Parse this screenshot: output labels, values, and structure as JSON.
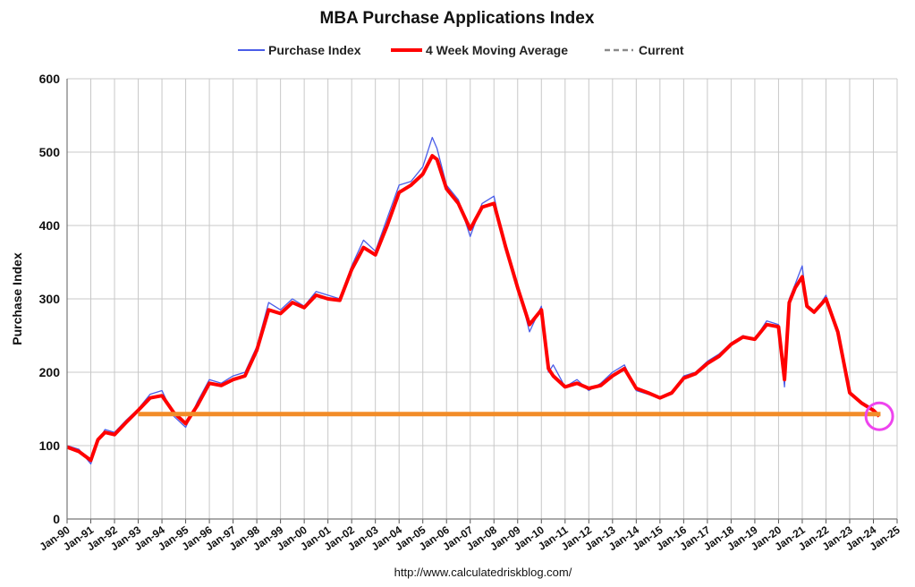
{
  "chart_data": {
    "type": "line",
    "title": "MBA Purchase Applications Index",
    "ylabel": "Purchase Index",
    "xlabel": "",
    "ylim": [
      0,
      600
    ],
    "yticks": [
      0,
      100,
      200,
      300,
      400,
      500,
      600
    ],
    "xlim": [
      1990.0,
      2025.0
    ],
    "x_tick_labels": [
      "Jan-90",
      "Jan-91",
      "Jan-92",
      "Jan-93",
      "Jan-94",
      "Jan-95",
      "Jan-96",
      "Jan-97",
      "Jan-98",
      "Jan-99",
      "Jan-00",
      "Jan-01",
      "Jan-02",
      "Jan-03",
      "Jan-04",
      "Jan-05",
      "Jan-06",
      "Jan-07",
      "Jan-08",
      "Jan-09",
      "Jan-10",
      "Jan-11",
      "Jan-12",
      "Jan-13",
      "Jan-14",
      "Jan-15",
      "Jan-16",
      "Jan-17",
      "Jan-18",
      "Jan-19",
      "Jan-20",
      "Jan-21",
      "Jan-22",
      "Jan-23",
      "Jan-24",
      "Jan-25"
    ],
    "grid": true,
    "legend": "top-center",
    "source": "http://www.calculatedriskblog.com/",
    "series": [
      {
        "name": "Purchase Index",
        "color": "#4a5de8",
        "x": [
          1990.0,
          1990.5,
          1991.0,
          1991.3,
          1991.6,
          1992.0,
          1992.5,
          1993.0,
          1993.5,
          1994.0,
          1994.5,
          1995.0,
          1995.5,
          1996.0,
          1996.5,
          1997.0,
          1997.5,
          1998.0,
          1998.5,
          1999.0,
          1999.5,
          2000.0,
          2000.5,
          2001.0,
          2001.5,
          2002.0,
          2002.5,
          2003.0,
          2003.5,
          2004.0,
          2004.5,
          2005.0,
          2005.4,
          2005.6,
          2006.0,
          2006.5,
          2007.0,
          2007.5,
          2008.0,
          2008.5,
          2009.0,
          2009.5,
          2010.0,
          2010.3,
          2010.5,
          2011.0,
          2011.5,
          2012.0,
          2012.5,
          2013.0,
          2013.5,
          2014.0,
          2014.5,
          2015.0,
          2015.5,
          2016.0,
          2016.5,
          2017.0,
          2017.5,
          2018.0,
          2018.5,
          2019.0,
          2019.5,
          2020.0,
          2020.25,
          2020.45,
          2020.7,
          2021.0,
          2021.2,
          2021.5,
          2022.0,
          2022.5,
          2023.0,
          2023.5,
          2024.0,
          2024.25
        ],
        "y": [
          100,
          95,
          75,
          105,
          122,
          118,
          135,
          150,
          170,
          175,
          140,
          125,
          160,
          190,
          185,
          195,
          200,
          235,
          295,
          285,
          300,
          290,
          310,
          305,
          300,
          345,
          380,
          365,
          410,
          455,
          460,
          480,
          520,
          505,
          455,
          435,
          385,
          430,
          440,
          365,
          320,
          255,
          290,
          200,
          210,
          180,
          190,
          175,
          185,
          200,
          210,
          175,
          170,
          165,
          170,
          195,
          200,
          215,
          225,
          240,
          250,
          245,
          270,
          265,
          180,
          300,
          320,
          345,
          290,
          280,
          305,
          250,
          170,
          160,
          150,
          140
        ]
      },
      {
        "name": "4 Week Moving Average",
        "color": "#ff0000",
        "x": [
          1990.0,
          1990.5,
          1991.0,
          1991.3,
          1991.6,
          1992.0,
          1992.5,
          1993.0,
          1993.5,
          1994.0,
          1994.5,
          1995.0,
          1995.5,
          1996.0,
          1996.5,
          1997.0,
          1997.5,
          1998.0,
          1998.5,
          1999.0,
          1999.5,
          2000.0,
          2000.5,
          2001.0,
          2001.5,
          2002.0,
          2002.5,
          2003.0,
          2003.5,
          2004.0,
          2004.5,
          2005.0,
          2005.4,
          2005.6,
          2006.0,
          2006.5,
          2007.0,
          2007.5,
          2008.0,
          2008.5,
          2009.0,
          2009.5,
          2010.0,
          2010.3,
          2010.5,
          2011.0,
          2011.5,
          2012.0,
          2012.5,
          2013.0,
          2013.5,
          2014.0,
          2014.5,
          2015.0,
          2015.5,
          2016.0,
          2016.5,
          2017.0,
          2017.5,
          2018.0,
          2018.5,
          2019.0,
          2019.5,
          2020.0,
          2020.25,
          2020.45,
          2020.7,
          2021.0,
          2021.2,
          2021.5,
          2022.0,
          2022.5,
          2023.0,
          2023.5,
          2024.0,
          2024.25
        ],
        "y": [
          98,
          92,
          80,
          108,
          118,
          115,
          132,
          148,
          165,
          168,
          145,
          130,
          155,
          185,
          182,
          190,
          195,
          230,
          285,
          280,
          295,
          288,
          305,
          300,
          298,
          340,
          370,
          360,
          400,
          445,
          455,
          470,
          495,
          490,
          450,
          430,
          395,
          425,
          430,
          370,
          315,
          265,
          285,
          205,
          195,
          180,
          185,
          178,
          182,
          195,
          205,
          178,
          172,
          165,
          172,
          192,
          198,
          212,
          222,
          238,
          248,
          245,
          265,
          262,
          190,
          295,
          315,
          330,
          290,
          282,
          300,
          255,
          172,
          158,
          148,
          140
        ]
      },
      {
        "name": "Current",
        "color": "#8a8a8a",
        "style": "dashed",
        "x": [
          1993.0,
          2024.3
        ],
        "y": [
          143,
          143
        ]
      }
    ],
    "annotations": [
      {
        "type": "hline",
        "color": "#f28c28",
        "x": [
          1993.0,
          2024.3
        ],
        "y": 143
      },
      {
        "type": "circle",
        "color": "#ee44ee",
        "x": 2024.25,
        "y": 140
      }
    ]
  }
}
